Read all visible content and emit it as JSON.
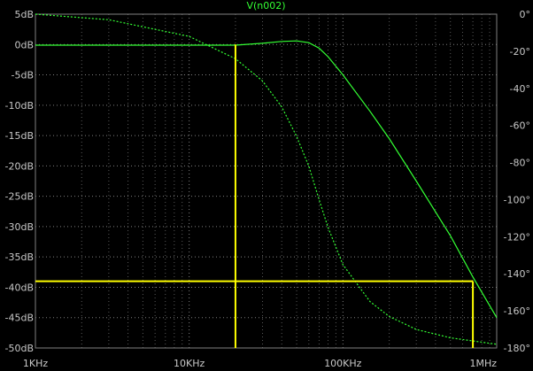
{
  "plot_title": "V(n002)",
  "chart_data": {
    "type": "line",
    "title": "V(n002)",
    "xscale": "log",
    "xlim": [
      1000,
      1000000
    ],
    "x_ticks": [
      {
        "value": 1000,
        "label": "1KHz"
      },
      {
        "value": 10000,
        "label": "10KHz"
      },
      {
        "value": 100000,
        "label": "100KHz"
      },
      {
        "value": 1000000,
        "label": "1MHz"
      }
    ],
    "y_left": {
      "unit": "dB",
      "lim": [
        -50,
        5
      ],
      "ticks": [
        {
          "value": 5,
          "label": "5dB"
        },
        {
          "value": 0,
          "label": "0dB"
        },
        {
          "value": -5,
          "label": "-5dB"
        },
        {
          "value": -10,
          "label": "-10dB"
        },
        {
          "value": -15,
          "label": "-15dB"
        },
        {
          "value": -20,
          "label": "-20dB"
        },
        {
          "value": -25,
          "label": "-25dB"
        },
        {
          "value": -30,
          "label": "-30dB"
        },
        {
          "value": -35,
          "label": "-35dB"
        },
        {
          "value": -40,
          "label": "-40dB"
        },
        {
          "value": -45,
          "label": "-45dB"
        },
        {
          "value": -50,
          "label": "-50dB"
        }
      ]
    },
    "y_right": {
      "unit": "°",
      "lim": [
        -180,
        0
      ],
      "ticks": [
        {
          "value": 0,
          "label": "0°"
        },
        {
          "value": -20,
          "label": "-20°"
        },
        {
          "value": -40,
          "label": "-40°"
        },
        {
          "value": -60,
          "label": "-60°"
        },
        {
          "value": -80,
          "label": "-80°"
        },
        {
          "value": -100,
          "label": "-100°"
        },
        {
          "value": -120,
          "label": "-120°"
        },
        {
          "value": -140,
          "label": "-140°"
        },
        {
          "value": -160,
          "label": "-160°"
        },
        {
          "value": -180,
          "label": "-180°"
        }
      ]
    },
    "series": [
      {
        "axis": "left",
        "style": "solid",
        "x": [
          1000,
          2000,
          5000,
          10000,
          20000,
          30000,
          40000,
          50000,
          60000,
          70000,
          80000,
          100000,
          150000,
          200000,
          300000,
          500000,
          700000,
          1000000
        ],
        "y": [
          -0.1,
          -0.1,
          -0.1,
          -0.1,
          -0.1,
          0.2,
          0.5,
          0.6,
          0.3,
          -0.6,
          -2.0,
          -5.0,
          -11.0,
          -15.5,
          -22.5,
          -31.5,
          -38.3,
          -45.0
        ]
      },
      {
        "axis": "right",
        "style": "dashed",
        "x": [
          1000,
          3000,
          10000,
          20000,
          30000,
          40000,
          50000,
          60000,
          70000,
          80000,
          100000,
          150000,
          200000,
          300000,
          500000,
          1000000
        ],
        "y": [
          0,
          -3,
          -12,
          -24,
          -36,
          -50,
          -66,
          -82,
          -100,
          -115,
          -135,
          -155,
          -163,
          -170,
          -174.5,
          -178
        ]
      }
    ],
    "cursors": {
      "vertical_x": [
        20000,
        700000
      ],
      "horizontal_y": -39,
      "color": "#ffff00"
    },
    "colors": {
      "background": "#000000",
      "trace": "#33ff33",
      "grid": "#7f7f7f",
      "axis_text": "#c8c8c8",
      "title_text": "#33ff33",
      "cursor": "#ffff00"
    }
  }
}
